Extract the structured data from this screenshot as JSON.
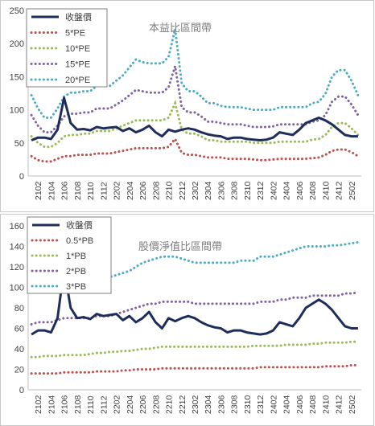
{
  "chart_data": [
    {
      "type": "line",
      "title": "本益比區間帶",
      "ylim": [
        0,
        250
      ],
      "yticks": [
        0,
        50,
        100,
        150,
        200,
        250
      ],
      "grid": false,
      "legend": "top-left",
      "xtick_labels": [
        "2102",
        "2104",
        "2106",
        "2108",
        "2110",
        "2112",
        "2202",
        "2204",
        "2206",
        "2208",
        "2210",
        "2212",
        "2302",
        "2304",
        "2306",
        "2308",
        "2310",
        "2312",
        "2402",
        "2404",
        "2406",
        "2408",
        "2410",
        "2412",
        "2502"
      ],
      "x": [
        "2101",
        "2102",
        "2103",
        "2104",
        "2105",
        "2106",
        "2107",
        "2108",
        "2109",
        "2110",
        "2111",
        "2112",
        "2201",
        "2202",
        "2203",
        "2204",
        "2205",
        "2206",
        "2207",
        "2208",
        "2209",
        "2210",
        "2211",
        "2212",
        "2301",
        "2302",
        "2303",
        "2304",
        "2305",
        "2306",
        "2307",
        "2308",
        "2309",
        "2310",
        "2311",
        "2312",
        "2401",
        "2402",
        "2403",
        "2404",
        "2405",
        "2406",
        "2407",
        "2408",
        "2409",
        "2410",
        "2411",
        "2412",
        "2501",
        "2502",
        "2503"
      ],
      "series": [
        {
          "name": "收盤價",
          "color": "#1f2d5c",
          "style": "solid",
          "values": [
            54,
            58,
            58,
            56,
            70,
            118,
            80,
            70,
            71,
            69,
            74,
            72,
            73,
            74,
            68,
            72,
            66,
            70,
            76,
            66,
            60,
            70,
            67,
            70,
            72,
            70,
            66,
            63,
            61,
            60,
            56,
            58,
            58,
            56,
            55,
            54,
            55,
            58,
            66,
            64,
            62,
            70,
            80,
            84,
            88,
            84,
            78,
            70,
            62,
            60,
            60
          ]
        },
        {
          "name": "5*PE",
          "color": "#c0504d",
          "style": "dotted",
          "values": [
            30,
            24,
            22,
            22,
            26,
            30,
            30,
            32,
            32,
            32,
            34,
            34,
            34,
            36,
            38,
            40,
            42,
            42,
            42,
            42,
            42,
            44,
            56,
            35,
            32,
            32,
            30,
            28,
            28,
            28,
            26,
            26,
            26,
            26,
            25,
            24,
            24,
            25,
            26,
            26,
            26,
            26,
            26,
            27,
            28,
            32,
            38,
            40,
            40,
            36,
            30
          ]
        },
        {
          "name": "10*PE",
          "color": "#9bbb59",
          "style": "dotted",
          "values": [
            60,
            50,
            44,
            44,
            50,
            60,
            62,
            62,
            64,
            64,
            68,
            68,
            68,
            72,
            76,
            80,
            84,
            84,
            84,
            84,
            84,
            88,
            110,
            70,
            64,
            64,
            60,
            54,
            54,
            52,
            52,
            52,
            52,
            52,
            50,
            50,
            50,
            50,
            52,
            52,
            52,
            52,
            52,
            55,
            56,
            62,
            74,
            80,
            80,
            72,
            62
          ]
        },
        {
          "name": "15*PE",
          "color": "#8064a2",
          "style": "dotted",
          "values": [
            92,
            76,
            66,
            66,
            76,
            90,
            94,
            94,
            96,
            96,
            102,
            102,
            102,
            108,
            114,
            122,
            130,
            128,
            126,
            126,
            126,
            134,
            166,
            104,
            96,
            96,
            90,
            82,
            82,
            80,
            78,
            78,
            78,
            76,
            74,
            74,
            74,
            75,
            78,
            78,
            78,
            78,
            78,
            82,
            84,
            92,
            112,
            120,
            120,
            108,
            92
          ]
        },
        {
          "name": "20*PE",
          "color": "#4bacc6",
          "style": "dotted",
          "values": [
            122,
            102,
            88,
            88,
            102,
            120,
            126,
            126,
            128,
            128,
            136,
            136,
            136,
            144,
            152,
            164,
            176,
            172,
            170,
            170,
            170,
            180,
            222,
            140,
            128,
            128,
            120,
            110,
            110,
            106,
            104,
            104,
            104,
            102,
            100,
            100,
            100,
            100,
            104,
            104,
            104,
            104,
            104,
            110,
            112,
            124,
            150,
            160,
            160,
            144,
            122
          ]
        }
      ]
    },
    {
      "type": "line",
      "title": "股價淨值比區間帶",
      "ylim": [
        0,
        160
      ],
      "yticks": [
        0,
        20,
        40,
        60,
        80,
        100,
        120,
        140,
        160
      ],
      "grid": false,
      "legend": "top-left",
      "xtick_labels": [
        "2102",
        "2104",
        "2106",
        "2108",
        "2110",
        "2112",
        "2202",
        "2204",
        "2206",
        "2208",
        "2210",
        "2212",
        "2302",
        "2304",
        "2306",
        "2308",
        "2310",
        "2312",
        "2402",
        "2404",
        "2406",
        "2408",
        "2410",
        "2412",
        "2502"
      ],
      "x": [
        "2101",
        "2102",
        "2103",
        "2104",
        "2105",
        "2106",
        "2107",
        "2108",
        "2109",
        "2110",
        "2111",
        "2112",
        "2201",
        "2202",
        "2203",
        "2204",
        "2205",
        "2206",
        "2207",
        "2208",
        "2209",
        "2210",
        "2211",
        "2212",
        "2301",
        "2302",
        "2303",
        "2304",
        "2305",
        "2306",
        "2307",
        "2308",
        "2309",
        "2310",
        "2311",
        "2312",
        "2401",
        "2402",
        "2403",
        "2404",
        "2405",
        "2406",
        "2407",
        "2408",
        "2409",
        "2410",
        "2411",
        "2412",
        "2501",
        "2502",
        "2503"
      ],
      "series": [
        {
          "name": "收盤價",
          "color": "#1f2d5c",
          "style": "solid",
          "values": [
            54,
            58,
            58,
            56,
            70,
            118,
            80,
            70,
            71,
            69,
            74,
            72,
            73,
            74,
            68,
            72,
            66,
            70,
            76,
            66,
            60,
            70,
            67,
            70,
            72,
            70,
            66,
            63,
            61,
            60,
            56,
            58,
            58,
            56,
            55,
            54,
            55,
            58,
            66,
            64,
            62,
            70,
            80,
            84,
            88,
            84,
            78,
            70,
            62,
            60,
            60
          ]
        },
        {
          "name": "0.5*PB",
          "color": "#c0504d",
          "style": "dotted",
          "values": [
            16,
            16,
            16,
            16,
            16,
            17,
            17,
            17,
            17,
            17,
            18,
            18,
            18,
            18,
            19,
            19,
            20,
            20,
            20,
            20,
            21,
            21,
            21,
            21,
            21,
            21,
            21,
            21,
            21,
            21,
            21,
            21,
            21,
            21,
            21,
            22,
            22,
            22,
            22,
            22,
            22,
            22,
            22,
            22,
            22,
            23,
            23,
            23,
            23,
            24,
            24
          ]
        },
        {
          "name": "1*PB",
          "color": "#9bbb59",
          "style": "dotted",
          "values": [
            32,
            32,
            33,
            33,
            33,
            34,
            34,
            34,
            34,
            35,
            36,
            36,
            37,
            37,
            38,
            38,
            39,
            40,
            40,
            41,
            42,
            42,
            42,
            42,
            42,
            42,
            42,
            42,
            42,
            42,
            42,
            42,
            42,
            42,
            43,
            43,
            43,
            43,
            43,
            44,
            44,
            44,
            44,
            45,
            45,
            46,
            46,
            46,
            46,
            47,
            47
          ]
        },
        {
          "name": "2*PB",
          "color": "#8064a2",
          "style": "dotted",
          "values": [
            64,
            66,
            66,
            66,
            68,
            70,
            70,
            70,
            70,
            70,
            72,
            72,
            72,
            74,
            76,
            78,
            80,
            82,
            84,
            84,
            86,
            86,
            86,
            86,
            86,
            84,
            84,
            84,
            84,
            84,
            84,
            84,
            84,
            84,
            84,
            86,
            86,
            86,
            88,
            88,
            90,
            90,
            90,
            92,
            92,
            92,
            92,
            92,
            94,
            94,
            95
          ]
        },
        {
          "name": "3*PB",
          "color": "#4bacc6",
          "style": "dotted",
          "values": [
            96,
            98,
            100,
            100,
            102,
            104,
            104,
            104,
            104,
            106,
            108,
            108,
            110,
            112,
            114,
            116,
            120,
            124,
            126,
            128,
            130,
            130,
            130,
            128,
            126,
            124,
            124,
            124,
            124,
            124,
            124,
            124,
            126,
            126,
            126,
            130,
            130,
            130,
            132,
            134,
            136,
            138,
            140,
            140,
            140,
            140,
            141,
            141,
            142,
            143,
            144
          ]
        }
      ]
    }
  ]
}
